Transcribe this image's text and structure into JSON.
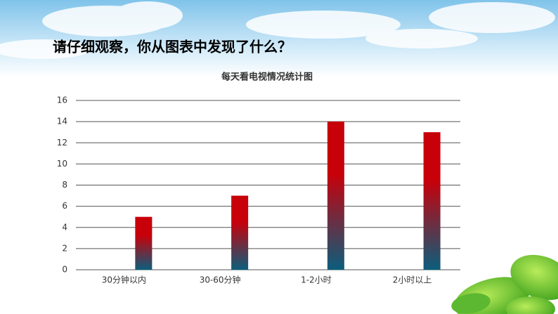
{
  "heading": "请仔细观察，你从图表中发现了什么？",
  "chart_data": {
    "type": "bar",
    "title": "每天看电视情况统计图",
    "categories": [
      "30分钟以内",
      "30-60分钟",
      "1-2小时",
      "2小时以上"
    ],
    "values": [
      5,
      7,
      14,
      13
    ],
    "gradient": [
      "#c8000a",
      "#0b5e7c"
    ],
    "ylim": [
      0,
      16
    ],
    "yticks": [
      0,
      2,
      4,
      6,
      8,
      10,
      12,
      14,
      16
    ],
    "grid": true
  }
}
